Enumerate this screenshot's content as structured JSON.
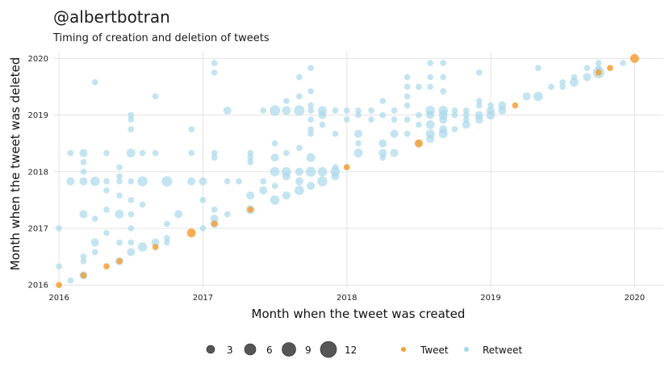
{
  "chart_data": {
    "type": "scatter",
    "title": "@albertbotran",
    "subtitle": "Timing of creation and deletion of tweets",
    "xlabel": "Month when the tweet was created",
    "ylabel": "Month when the tweet was deleted",
    "xlim": [
      2015.96,
      2020.2
    ],
    "ylim": [
      2015.96,
      2020.12
    ],
    "x_ticks": [
      "2016",
      "2017",
      "2018",
      "2019",
      "2020"
    ],
    "y_ticks": [
      "2016",
      "2017",
      "2018",
      "2019",
      "2020"
    ],
    "grid": true,
    "colors": {
      "Tweet": "#f5a034",
      "Retweet": "#a9d8ea",
      "size_legend": "#444444"
    },
    "legend": {
      "size_title": "",
      "sizes": [
        "3",
        "6",
        "9",
        "12"
      ],
      "type_entries": [
        "Tweet",
        "Retweet"
      ],
      "placement": "bottom"
    },
    "series": [
      {
        "name": "Retweet",
        "points": [
          [
            2016.0,
            2017.0,
            1
          ],
          [
            2016.0,
            2016.33,
            1
          ],
          [
            2016.08,
            2016.08,
            1
          ],
          [
            2016.08,
            2017.83,
            3
          ],
          [
            2016.08,
            2018.33,
            1
          ],
          [
            2016.17,
            2016.17,
            3
          ],
          [
            2016.17,
            2016.42,
            1
          ],
          [
            2016.17,
            2016.5,
            1
          ],
          [
            2016.17,
            2017.25,
            3
          ],
          [
            2016.17,
            2017.83,
            3
          ],
          [
            2016.17,
            2018.0,
            1
          ],
          [
            2016.17,
            2018.17,
            1
          ],
          [
            2016.17,
            2018.33,
            3
          ],
          [
            2016.25,
            2016.58,
            1
          ],
          [
            2016.25,
            2016.75,
            3
          ],
          [
            2016.25,
            2017.17,
            1
          ],
          [
            2016.25,
            2017.83,
            5
          ],
          [
            2016.25,
            2019.58,
            1
          ],
          [
            2016.33,
            2016.92,
            1
          ],
          [
            2016.33,
            2017.33,
            1
          ],
          [
            2016.33,
            2017.67,
            1
          ],
          [
            2016.33,
            2017.83,
            1
          ],
          [
            2016.33,
            2018.33,
            1
          ],
          [
            2016.42,
            2016.42,
            3
          ],
          [
            2016.42,
            2016.75,
            1
          ],
          [
            2016.42,
            2017.25,
            4
          ],
          [
            2016.42,
            2017.58,
            1
          ],
          [
            2016.42,
            2017.83,
            1
          ],
          [
            2016.42,
            2017.92,
            1
          ],
          [
            2016.42,
            2018.08,
            1
          ],
          [
            2016.5,
            2016.58,
            3
          ],
          [
            2016.5,
            2016.75,
            1
          ],
          [
            2016.5,
            2017.0,
            1
          ],
          [
            2016.5,
            2017.25,
            1
          ],
          [
            2016.5,
            2017.5,
            1
          ],
          [
            2016.5,
            2017.83,
            1
          ],
          [
            2016.5,
            2018.33,
            4
          ],
          [
            2016.5,
            2018.75,
            1
          ],
          [
            2016.5,
            2018.92,
            1
          ],
          [
            2016.5,
            2019.0,
            1
          ],
          [
            2016.58,
            2016.67,
            5
          ],
          [
            2016.58,
            2017.42,
            1
          ],
          [
            2016.58,
            2017.83,
            6
          ],
          [
            2016.58,
            2018.33,
            1
          ],
          [
            2016.67,
            2016.75,
            3
          ],
          [
            2016.67,
            2018.33,
            1
          ],
          [
            2016.67,
            2019.33,
            1
          ],
          [
            2016.75,
            2016.75,
            1
          ],
          [
            2016.75,
            2016.83,
            1
          ],
          [
            2016.75,
            2017.08,
            1
          ],
          [
            2016.75,
            2017.83,
            7
          ],
          [
            2016.83,
            2017.25,
            3
          ],
          [
            2016.92,
            2017.83,
            3
          ],
          [
            2016.92,
            2018.33,
            1
          ],
          [
            2016.92,
            2018.75,
            1
          ],
          [
            2017.0,
            2017.83,
            3
          ],
          [
            2017.0,
            2017.5,
            1
          ],
          [
            2017.0,
            2017.0,
            1
          ],
          [
            2017.08,
            2017.08,
            3
          ],
          [
            2017.08,
            2017.17,
            3
          ],
          [
            2017.08,
            2017.33,
            1
          ],
          [
            2017.08,
            2018.25,
            1
          ],
          [
            2017.08,
            2018.33,
            1
          ],
          [
            2017.08,
            2019.75,
            1
          ],
          [
            2017.08,
            2019.92,
            1
          ],
          [
            2017.17,
            2017.25,
            1
          ],
          [
            2017.17,
            2017.83,
            1
          ],
          [
            2017.17,
            2019.08,
            3
          ],
          [
            2017.25,
            2017.83,
            1
          ],
          [
            2017.33,
            2017.33,
            4
          ],
          [
            2017.33,
            2017.58,
            3
          ],
          [
            2017.33,
            2018.17,
            1
          ],
          [
            2017.33,
            2018.25,
            1
          ],
          [
            2017.33,
            2018.33,
            1
          ],
          [
            2017.42,
            2017.67,
            3
          ],
          [
            2017.42,
            2017.83,
            1
          ],
          [
            2017.42,
            2019.08,
            1
          ],
          [
            2017.5,
            2017.5,
            5
          ],
          [
            2017.5,
            2017.75,
            1
          ],
          [
            2017.5,
            2018.0,
            5
          ],
          [
            2017.5,
            2018.25,
            3
          ],
          [
            2017.5,
            2018.5,
            1
          ],
          [
            2017.5,
            2019.08,
            7
          ],
          [
            2017.58,
            2017.58,
            3
          ],
          [
            2017.58,
            2017.92,
            3
          ],
          [
            2017.58,
            2018.0,
            5
          ],
          [
            2017.58,
            2018.33,
            1
          ],
          [
            2017.58,
            2019.08,
            4
          ],
          [
            2017.58,
            2019.25,
            1
          ],
          [
            2017.67,
            2017.67,
            5
          ],
          [
            2017.67,
            2017.83,
            3
          ],
          [
            2017.67,
            2018.0,
            3
          ],
          [
            2017.67,
            2018.42,
            1
          ],
          [
            2017.67,
            2019.08,
            7
          ],
          [
            2017.67,
            2019.33,
            1
          ],
          [
            2017.67,
            2019.67,
            1
          ],
          [
            2017.75,
            2017.75,
            3
          ],
          [
            2017.75,
            2018.0,
            6
          ],
          [
            2017.75,
            2018.25,
            4
          ],
          [
            2017.75,
            2018.67,
            1
          ],
          [
            2017.75,
            2018.75,
            1
          ],
          [
            2017.75,
            2018.92,
            1
          ],
          [
            2017.75,
            2019.08,
            1
          ],
          [
            2017.75,
            2019.17,
            1
          ],
          [
            2017.75,
            2019.42,
            1
          ],
          [
            2017.75,
            2019.83,
            1
          ],
          [
            2017.83,
            2017.83,
            6
          ],
          [
            2017.83,
            2018.0,
            5
          ],
          [
            2017.83,
            2018.83,
            1
          ],
          [
            2017.83,
            2019.0,
            3
          ],
          [
            2017.83,
            2019.08,
            4
          ],
          [
            2017.92,
            2017.92,
            3
          ],
          [
            2017.92,
            2018.0,
            5
          ],
          [
            2017.92,
            2018.08,
            1
          ],
          [
            2017.92,
            2018.67,
            1
          ],
          [
            2017.92,
            2019.08,
            1
          ],
          [
            2018.0,
            2018.08,
            1
          ],
          [
            2018.0,
            2018.92,
            1
          ],
          [
            2018.0,
            2019.08,
            1
          ],
          [
            2018.08,
            2018.33,
            4
          ],
          [
            2018.08,
            2018.5,
            1
          ],
          [
            2018.08,
            2018.67,
            3
          ],
          [
            2018.08,
            2019.0,
            1
          ],
          [
            2018.08,
            2019.08,
            1
          ],
          [
            2018.17,
            2018.92,
            1
          ],
          [
            2018.17,
            2019.08,
            1
          ],
          [
            2018.25,
            2018.25,
            1
          ],
          [
            2018.25,
            2018.33,
            3
          ],
          [
            2018.25,
            2018.5,
            3
          ],
          [
            2018.25,
            2019.0,
            1
          ],
          [
            2018.25,
            2019.25,
            1
          ],
          [
            2018.33,
            2018.33,
            3
          ],
          [
            2018.33,
            2018.67,
            3
          ],
          [
            2018.33,
            2018.92,
            1
          ],
          [
            2018.33,
            2019.08,
            1
          ],
          [
            2018.42,
            2018.67,
            1
          ],
          [
            2018.42,
            2018.92,
            1
          ],
          [
            2018.42,
            2019.17,
            1
          ],
          [
            2018.42,
            2019.33,
            1
          ],
          [
            2018.42,
            2019.5,
            1
          ],
          [
            2018.42,
            2019.67,
            1
          ],
          [
            2018.5,
            2018.5,
            1
          ],
          [
            2018.5,
            2018.83,
            1
          ],
          [
            2018.5,
            2019.0,
            1
          ],
          [
            2018.5,
            2019.5,
            1
          ],
          [
            2018.58,
            2018.58,
            3
          ],
          [
            2018.58,
            2018.67,
            4
          ],
          [
            2018.58,
            2018.83,
            4
          ],
          [
            2018.58,
            2019.0,
            3
          ],
          [
            2018.58,
            2019.08,
            5
          ],
          [
            2018.58,
            2019.5,
            1
          ],
          [
            2018.58,
            2019.67,
            1
          ],
          [
            2018.58,
            2019.92,
            1
          ],
          [
            2018.67,
            2018.67,
            4
          ],
          [
            2018.67,
            2018.75,
            3
          ],
          [
            2018.67,
            2018.92,
            3
          ],
          [
            2018.67,
            2019.0,
            4
          ],
          [
            2018.67,
            2019.08,
            5
          ],
          [
            2018.67,
            2019.42,
            1
          ],
          [
            2018.67,
            2019.67,
            1
          ],
          [
            2018.67,
            2019.92,
            1
          ],
          [
            2018.75,
            2018.75,
            1
          ],
          [
            2018.75,
            2019.0,
            1
          ],
          [
            2018.75,
            2019.08,
            1
          ],
          [
            2018.83,
            2018.83,
            3
          ],
          [
            2018.83,
            2018.92,
            1
          ],
          [
            2018.83,
            2019.0,
            1
          ],
          [
            2018.83,
            2019.08,
            1
          ],
          [
            2018.92,
            2018.92,
            3
          ],
          [
            2018.92,
            2019.0,
            3
          ],
          [
            2018.92,
            2019.17,
            1
          ],
          [
            2018.92,
            2019.25,
            1
          ],
          [
            2018.92,
            2019.75,
            1
          ],
          [
            2019.0,
            2019.0,
            4
          ],
          [
            2019.0,
            2019.08,
            3
          ],
          [
            2019.0,
            2019.17,
            1
          ],
          [
            2019.08,
            2019.08,
            3
          ],
          [
            2019.08,
            2019.17,
            3
          ],
          [
            2019.25,
            2019.33,
            3
          ],
          [
            2019.33,
            2019.33,
            5
          ],
          [
            2019.33,
            2019.83,
            1
          ],
          [
            2019.42,
            2019.5,
            1
          ],
          [
            2019.5,
            2019.5,
            1
          ],
          [
            2019.5,
            2019.58,
            1
          ],
          [
            2019.58,
            2019.58,
            4
          ],
          [
            2019.58,
            2019.67,
            1
          ],
          [
            2019.67,
            2019.67,
            3
          ],
          [
            2019.67,
            2019.83,
            1
          ],
          [
            2019.75,
            2019.75,
            9
          ],
          [
            2019.75,
            2019.83,
            1
          ],
          [
            2019.75,
            2019.92,
            1
          ],
          [
            2019.92,
            2019.92,
            1
          ]
        ]
      },
      {
        "name": "Tweet",
        "points": [
          [
            2016.0,
            2016.0,
            1
          ],
          [
            2016.17,
            2016.17,
            1
          ],
          [
            2016.33,
            2016.33,
            1
          ],
          [
            2016.42,
            2016.42,
            1
          ],
          [
            2016.67,
            2016.67,
            1
          ],
          [
            2016.92,
            2016.92,
            4
          ],
          [
            2017.08,
            2017.08,
            1
          ],
          [
            2017.33,
            2017.33,
            1
          ],
          [
            2018.0,
            2018.08,
            1
          ],
          [
            2018.5,
            2018.5,
            3
          ],
          [
            2019.17,
            2019.17,
            1
          ],
          [
            2019.75,
            2019.75,
            1
          ],
          [
            2019.83,
            2019.83,
            1
          ],
          [
            2020.0,
            2020.0,
            4
          ]
        ]
      }
    ]
  }
}
